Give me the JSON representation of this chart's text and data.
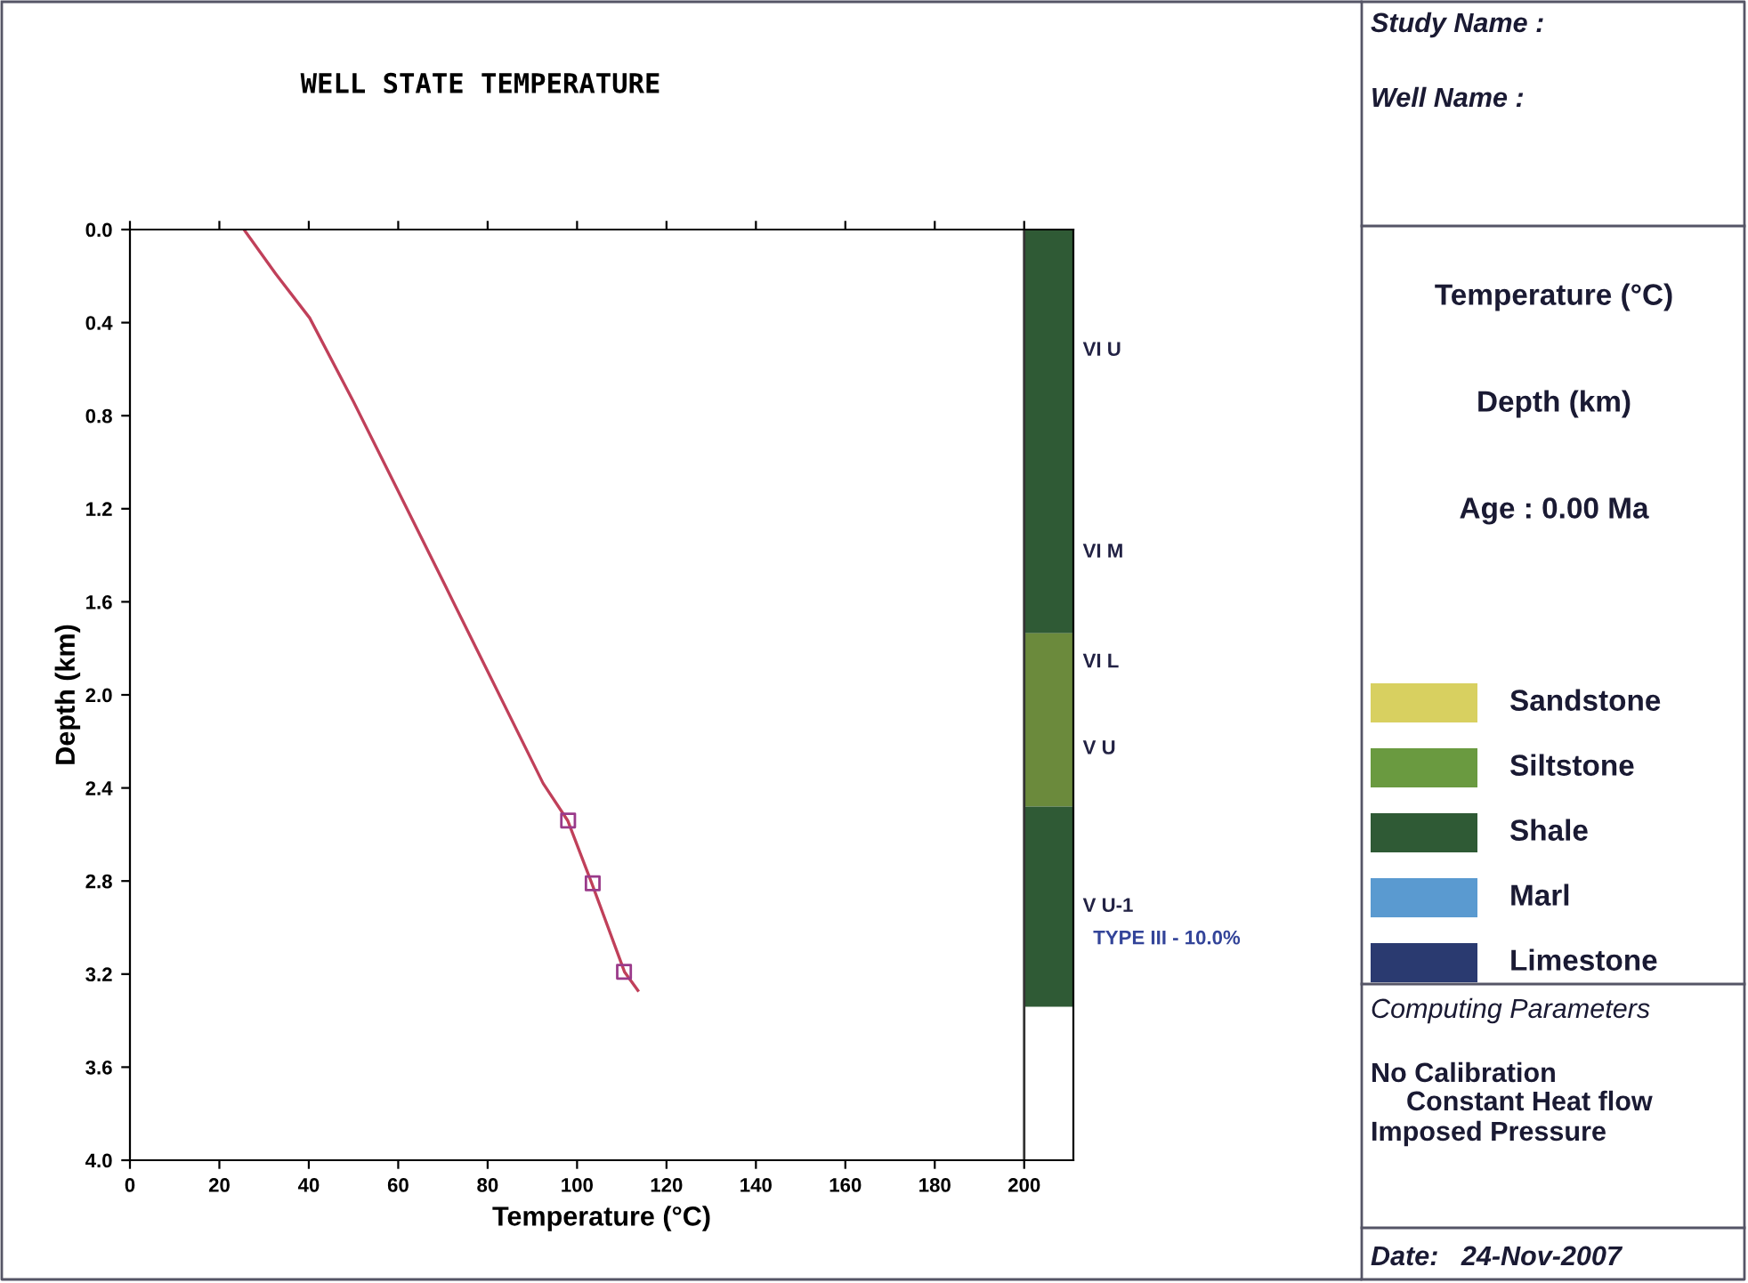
{
  "chart_data": [
    {
      "type": "line",
      "title": "WELL STATE TEMPERATURE",
      "xlabel": "Temperature (°C)",
      "ylabel": "Depth (km)",
      "series": [
        {
          "type": "line",
          "color": "#c0405a",
          "marker": "none",
          "x": [
            25.5,
            32.6,
            40.2,
            50,
            59.1,
            70.5,
            80.3,
            92.4,
            97.9,
            103.3,
            110.6,
            113.6
          ],
          "values": [
            0.0,
            0.19,
            0.38,
            0.74,
            1.09,
            1.53,
            1.91,
            2.38,
            2.54,
            2.81,
            3.19,
            3.27
          ]
        },
        {
          "type": "scatter",
          "color": "#9a3a8a",
          "marker": "square",
          "x": [
            98,
            103.5,
            110.5
          ],
          "values": [
            2.54,
            2.81,
            3.19
          ]
        }
      ],
      "xlim": [
        0,
        211
      ],
      "xticks": [
        0,
        20,
        40,
        60,
        80,
        100,
        120,
        140,
        160,
        180,
        200
      ],
      "ylim": [
        4.0,
        0.0
      ],
      "yticks": [
        {
          "value": 0,
          "label": "0.0"
        },
        0.4,
        0.8,
        1.2,
        1.6,
        {
          "value": 2,
          "label": "2.0"
        },
        2.4,
        2.8,
        3.2,
        3.6,
        {
          "value": 4,
          "label": "4.0"
        }
      ],
      "bands": [
        {
          "axis": "y",
          "from": 0.0,
          "to": 1.04,
          "label": "VI U",
          "color": "#2f5a35"
        },
        {
          "axis": "y",
          "from": 1.04,
          "to": 1.735,
          "label": "VI M",
          "color": "#2f5a35"
        },
        {
          "axis": "y",
          "from": 1.735,
          "to": 1.985,
          "label": "VI L",
          "color": "#6b8a3c"
        },
        {
          "axis": "y",
          "from": 1.985,
          "to": 2.48,
          "label": "V U",
          "color": "#6b8a3c"
        },
        {
          "axis": "y",
          "from": 2.48,
          "to": 3.34,
          "label": "V U-1",
          "color": "#2f5a35"
        }
      ],
      "annotations": [
        {
          "text": "TYPE III - 10.0%",
          "x": 211,
          "y": 3.05
        }
      ],
      "legend": false
    },
    {
      "type": "other",
      "annotations": [
        "Study Name :",
        "Well Name :",
        "Temperature (°C)",
        "Depth (km)",
        "Age : 0.00 Ma",
        "Computing Parameters",
        "No Calibration",
        "Constant Heat flow",
        "Imposed Pressure",
        "Date:   24-Nov-2007"
      ],
      "categories": [
        "Sandstone",
        "Siltstone",
        "Shale",
        "Marl",
        "Limestone"
      ],
      "colors": [
        "#d8d060",
        "#6a9a40",
        "#2f5a35",
        "#5a9ad0",
        "#2a3a70"
      ]
    }
  ]
}
